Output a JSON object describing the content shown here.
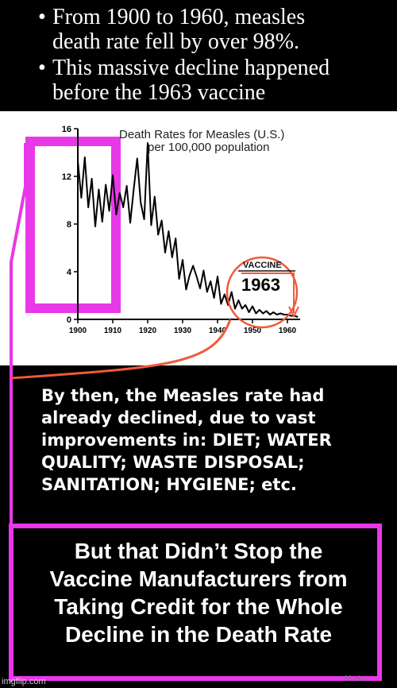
{
  "header": {
    "bullets": [
      {
        "symbol": "•",
        "lines": [
          "From 1900 to 1960, measles",
          "death rate fell by over 98%."
        ]
      },
      {
        "symbol": "•",
        "lines": [
          "This massive decline happened",
          "before the 1963 vaccine"
        ]
      }
    ]
  },
  "chart_data": {
    "type": "line",
    "title": "Death Rates for Measles (U.S.)",
    "subtitle": "per 100,000 population",
    "xlabel": "",
    "ylabel": "",
    "xlim": [
      1900,
      1963
    ],
    "ylim": [
      0,
      16
    ],
    "x_ticks": [
      "1900",
      "1910",
      "1920",
      "1930",
      "1940",
      "1950",
      "1960"
    ],
    "y_ticks": [
      "0",
      "4",
      "8",
      "12",
      "16"
    ],
    "grid": false,
    "series": [
      {
        "color": "#000000",
        "x": [
          1900,
          1901,
          1902,
          1903,
          1904,
          1905,
          1906,
          1907,
          1908,
          1909,
          1910,
          1911,
          1912,
          1913,
          1914,
          1915,
          1916,
          1917,
          1918,
          1919,
          1920,
          1921,
          1922,
          1923,
          1924,
          1925,
          1926,
          1927,
          1928,
          1929,
          1930,
          1931,
          1932,
          1933,
          1934,
          1935,
          1936,
          1937,
          1938,
          1939,
          1940,
          1941,
          1942,
          1943,
          1944,
          1945,
          1946,
          1947,
          1948,
          1949,
          1950,
          1951,
          1952,
          1953,
          1954,
          1955,
          1956,
          1957,
          1958,
          1959,
          1960,
          1961,
          1962,
          1963
        ],
        "values": [
          13.3,
          10.2,
          13.6,
          9.4,
          11.8,
          7.8,
          10.9,
          8.2,
          11.3,
          9.1,
          12.1,
          8.8,
          10.6,
          9.4,
          11.2,
          8.1,
          10.9,
          13.5,
          9.8,
          8.4,
          14.8,
          7.9,
          10.3,
          7.1,
          8.3,
          5.6,
          7.4,
          5.2,
          6.8,
          3.4,
          5.0,
          2.5,
          3.7,
          4.5,
          3.6,
          2.6,
          4.1,
          2.3,
          3.2,
          1.8,
          3.6,
          1.3,
          2.1,
          1.2,
          2.3,
          0.9,
          1.6,
          0.9,
          1.2,
          0.6,
          1.1,
          0.5,
          0.8,
          0.5,
          0.7,
          0.4,
          0.6,
          0.4,
          0.5,
          0.4,
          0.4,
          0.3,
          0.3,
          0.2
        ]
      }
    ],
    "annotations": [
      {
        "text": "VACCINE"
      },
      {
        "text": "1963"
      }
    ],
    "colors": {
      "highlight_pink": "#e838e8",
      "accent_red": "#f05a3a",
      "line": "#000000"
    }
  },
  "body_text": {
    "lines": [
      "By then, the Measles rate had",
      "already declined, due to vast",
      "improvements in: DIET; WATER",
      "QUALITY; WASTE DISPOSAL;",
      "SANITATION; HYGIENE; etc."
    ]
  },
  "banner": {
    "lines": [
      "But that Didn’t Stop the",
      "Vaccine Manufacturers from",
      "Taking Credit for the Whole",
      "Decline in the Death Rate"
    ]
  },
  "footer": {
    "watermark": "imgflip.com",
    "signature": "Marko"
  }
}
